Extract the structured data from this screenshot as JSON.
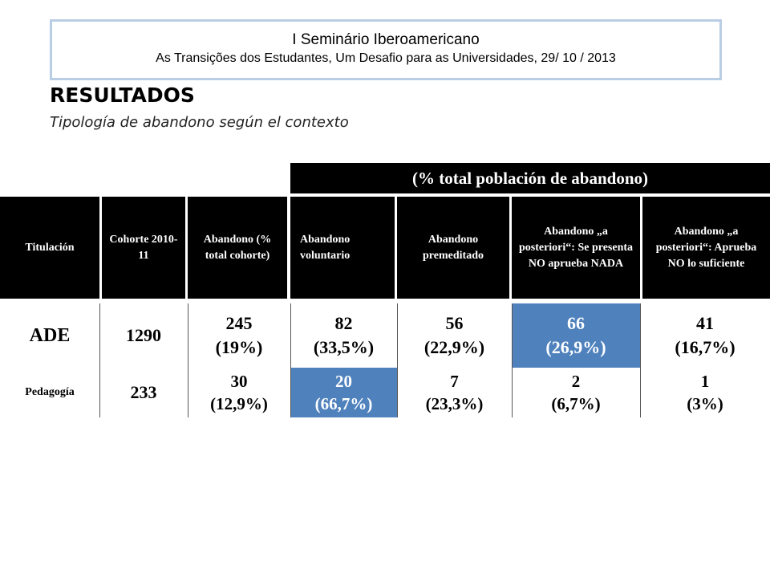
{
  "banner": {
    "title": "I Seminário Iberoamericano",
    "subtitle": "As Transições dos Estudantes, Um Desafio para as Universidades, 29/ 10 / 2013"
  },
  "heading": "RESULTADOS",
  "subheading": "Tipología de abandono según el contexto",
  "table": {
    "group_header": "(% total población de abandono)",
    "columns": [
      "Titulación",
      "Cohorte 2010-11",
      "Abandono (% total cohorte)",
      "Abandono voluntario",
      "Abandono premeditado",
      "Abandono „a posteriori“: Se presenta NO aprueba NADA",
      "Abandono „a posteriori“: Aprueba NO lo suficiente"
    ],
    "rows": [
      {
        "titulacion": "ADE",
        "cohorte": "1290",
        "abandono_n": "245",
        "abandono_p": "(19%)",
        "voluntario_n": "82",
        "voluntario_p": "(33,5%)",
        "premeditado_n": "56",
        "premeditado_p": "(22,9%)",
        "nada_n": "66",
        "nada_p": "(26,9%)",
        "suficiente_n": "41",
        "suficiente_p": "(16,7%)"
      },
      {
        "titulacion": "Pedagogía",
        "cohorte": "233",
        "abandono_n": "30",
        "abandono_p": "(12,9%)",
        "voluntario_n": "20",
        "voluntario_p": "(66,7%)",
        "premeditado_n": "7",
        "premeditado_p": "(23,3%)",
        "nada_n": "2",
        "nada_p": "(6,7%)",
        "suficiente_n": "1",
        "suficiente_p": "(3%)"
      }
    ],
    "highlight_color": "#4f81bd"
  }
}
